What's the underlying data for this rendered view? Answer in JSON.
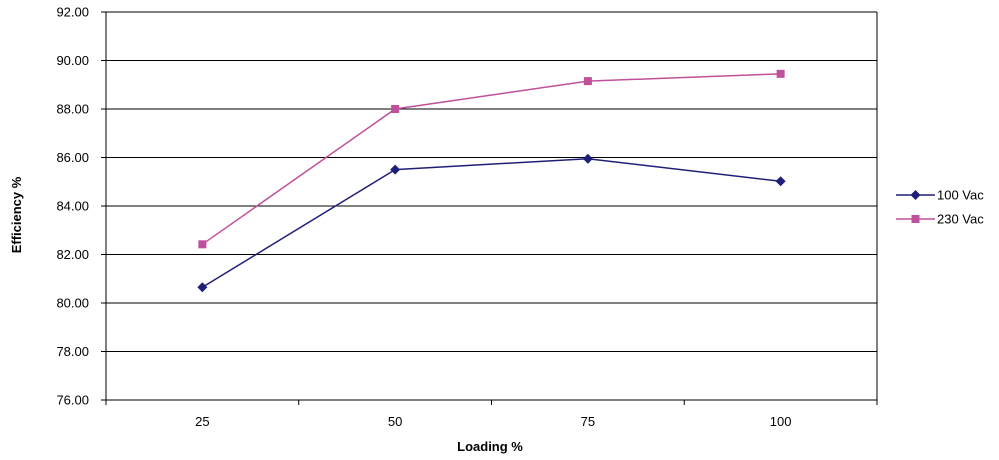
{
  "chart_data": {
    "type": "line",
    "title": "",
    "xlabel": "Loading %",
    "ylabel": "Efficiency %",
    "categories": [
      "25",
      "50",
      "75",
      "100"
    ],
    "ylim": [
      76,
      92
    ],
    "ytick_step": 2,
    "ytick_labels": [
      "76.00",
      "78.00",
      "80.00",
      "82.00",
      "84.00",
      "86.00",
      "88.00",
      "90.00",
      "92.00"
    ],
    "grid": "horizontal",
    "legend_position": "right",
    "series": [
      {
        "name": "100 Vac",
        "values": [
          80.65,
          85.5,
          85.95,
          85.02
        ],
        "color": "#1f1f7a",
        "marker": "diamond"
      },
      {
        "name": "230 Vac",
        "values": [
          82.42,
          88.0,
          89.15,
          89.45
        ],
        "color": "#c0509a",
        "marker": "square"
      }
    ]
  }
}
